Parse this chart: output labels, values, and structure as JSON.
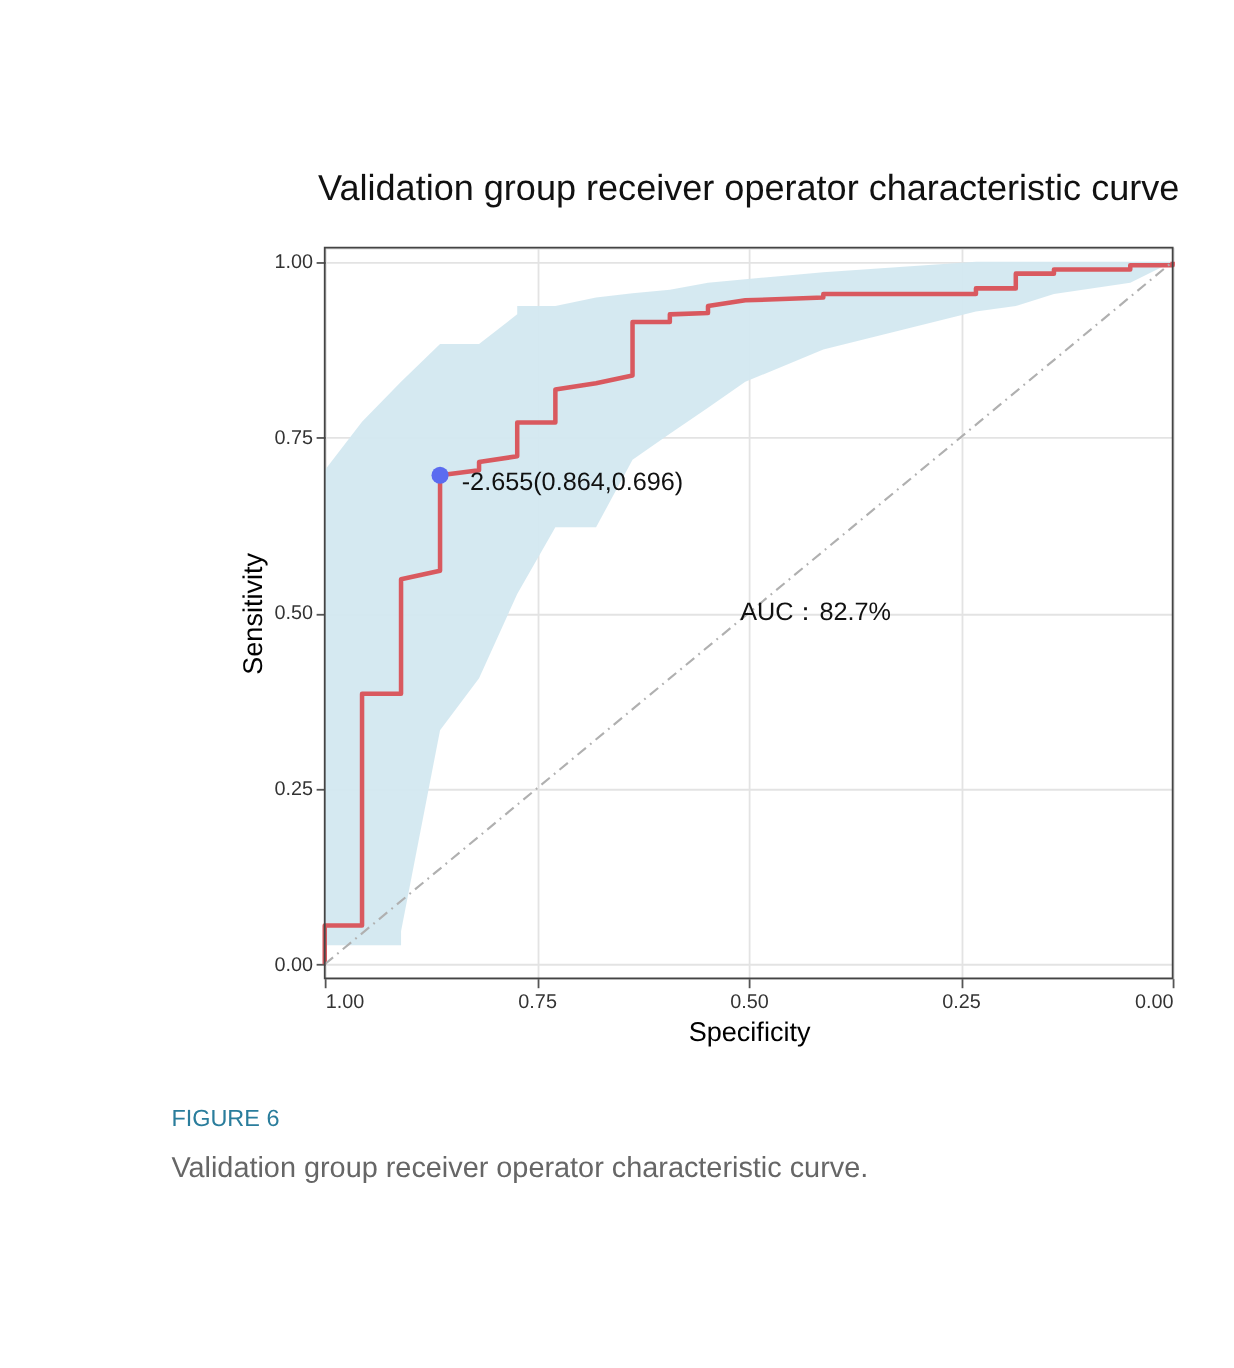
{
  "chart_data": {
    "type": "line",
    "title": "Validation group receiver operator characteristic curve",
    "xlabel": "Specificity",
    "ylabel": "Sensitivity",
    "xlim": [
      1,
      0
    ],
    "ylim": [
      -0.02,
      1.02
    ],
    "xticks": [
      {
        "value": 1,
        "label": "1.00"
      },
      {
        "value": 0.75,
        "label": "0.75"
      },
      {
        "value": 0.5,
        "label": "0.50"
      },
      {
        "value": 0.25,
        "label": "0.25"
      },
      {
        "value": 0,
        "label": "0.00"
      }
    ],
    "yticks": [
      {
        "value": 0,
        "label": "0.00"
      },
      {
        "value": 0.25,
        "label": "0.25"
      },
      {
        "value": 0.5,
        "label": "0.50"
      },
      {
        "value": 0.75,
        "label": "0.75"
      },
      {
        "value": 1,
        "label": "1.00"
      }
    ],
    "grid": true,
    "series": [
      {
        "color": "#d9595f",
        "line_style": "solid",
        "x": [
          1.0,
          1.0,
          0.956,
          0.956,
          0.91,
          0.91,
          0.864,
          0.864,
          0.818,
          0.818,
          0.773,
          0.773,
          0.728,
          0.728,
          0.68,
          0.637,
          0.637,
          0.593,
          0.593,
          0.548,
          0.548,
          0.504,
          0.412,
          0.412,
          0.232,
          0.232,
          0.185,
          0.185,
          0.14,
          0.14,
          0.05,
          0.05,
          0.0,
          0.0
        ],
        "values": [
          0.0,
          0.055,
          0.055,
          0.385,
          0.385,
          0.548,
          0.56,
          0.696,
          0.703,
          0.715,
          0.723,
          0.771,
          0.771,
          0.818,
          0.827,
          0.838,
          0.914,
          0.914,
          0.925,
          0.927,
          0.937,
          0.945,
          0.949,
          0.954,
          0.954,
          0.962,
          0.962,
          0.983,
          0.983,
          0.989,
          0.989,
          0.995,
          0.995,
          1.0
        ],
        "lower": [
          0.027,
          0.027,
          0.027,
          0.027,
          0.027,
          0.047,
          0.333,
          0.333,
          0.407,
          0.407,
          0.527,
          0.527,
          0.622,
          0.622,
          0.622,
          0.718,
          0.718,
          0.755,
          0.755,
          0.792,
          0.792,
          0.829,
          0.875,
          0.875,
          0.929,
          0.929,
          0.937,
          0.937,
          0.954,
          0.954,
          0.97,
          0.97,
          1.0,
          1.0
        ],
        "upper": [
          0.703,
          0.703,
          0.772,
          0.772,
          0.829,
          0.829,
          0.883,
          0.883,
          0.883,
          0.883,
          0.925,
          0.937,
          0.937,
          0.937,
          0.949,
          0.955,
          0.955,
          0.96,
          0.96,
          0.97,
          0.97,
          0.975,
          0.985,
          0.985,
          1.0,
          1.0,
          1.0,
          1.0,
          1.0,
          1.0,
          1.0,
          1.0,
          1.0,
          1.0
        ]
      },
      {
        "type": "line",
        "color": "#b0b0b0",
        "line_style": "dashed",
        "x": [
          1.0,
          0.0
        ],
        "values": [
          0.0,
          1.0
        ]
      },
      {
        "type": "scatter",
        "color": "#5b6cf0",
        "marker": "circle",
        "x": [
          0.864
        ],
        "values": [
          0.696
        ]
      }
    ],
    "annotations": [
      {
        "text": "-2.655(0.864,0.696)",
        "x": 0.864,
        "y": 0.696
      },
      "AUC：82.7%",
      "FIGURE 6",
      "Validation group receiver operator characteristic curve."
    ]
  }
}
